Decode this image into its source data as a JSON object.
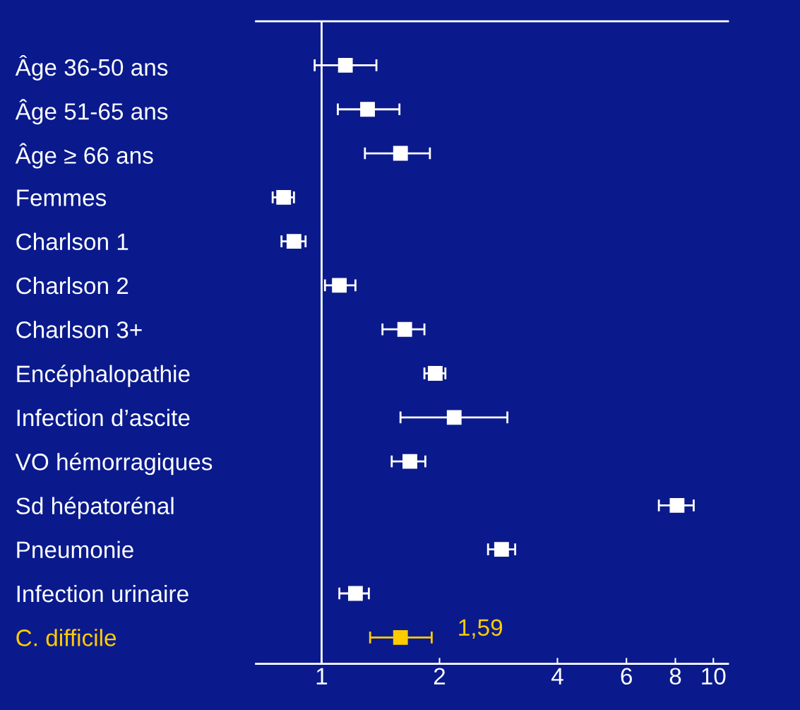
{
  "chart_data": {
    "type": "scatter",
    "orientation": "horizontal",
    "log": "x",
    "categories": [
      "Âge 36-50 ans",
      "Âge 51-65 ans",
      "Âge ≥ 66 ans",
      "Femmes",
      "Charlson 1",
      "Charlson 2",
      "Charlson 3+",
      "Encéphalopathie",
      "Infection d’ascite",
      "VO hémorragiques",
      "Sd hépatorénal",
      "Pneumonie",
      "Infection urinaire",
      "C. difficile"
    ],
    "values": [
      1.15,
      1.31,
      1.59,
      0.8,
      0.85,
      1.11,
      1.63,
      1.95,
      2.18,
      1.68,
      8.08,
      2.88,
      1.22,
      1.59
    ],
    "errors": [
      [
        0.96,
        1.38
      ],
      [
        1.1,
        1.58
      ],
      [
        1.29,
        1.89
      ],
      [
        0.75,
        0.85
      ],
      [
        0.79,
        0.91
      ],
      [
        1.02,
        1.22
      ],
      [
        1.43,
        1.83
      ],
      [
        1.83,
        2.07
      ],
      [
        1.59,
        2.98
      ],
      [
        1.51,
        1.84
      ],
      [
        7.26,
        8.91
      ],
      [
        2.66,
        3.12
      ],
      [
        1.11,
        1.32
      ],
      [
        1.33,
        1.91
      ]
    ],
    "colors": [
      "#ffffff",
      "#ffffff",
      "#ffffff",
      "#ffffff",
      "#ffffff",
      "#ffffff",
      "#ffffff",
      "#ffffff",
      "#ffffff",
      "#ffffff",
      "#ffffff",
      "#ffffff",
      "#ffffff",
      "#ffcc00"
    ],
    "value_labels": [
      null,
      null,
      null,
      null,
      null,
      null,
      null,
      null,
      null,
      null,
      null,
      null,
      null,
      "1,59"
    ],
    "marker": "square",
    "xlim": [
      0.68,
      10.9
    ],
    "xticks": [
      1,
      2,
      4,
      6,
      8,
      10
    ],
    "ref_lines": [
      {
        "axis": "x",
        "value": 1,
        "color": "#ffffff"
      }
    ],
    "grid": false,
    "legend": false
  }
}
